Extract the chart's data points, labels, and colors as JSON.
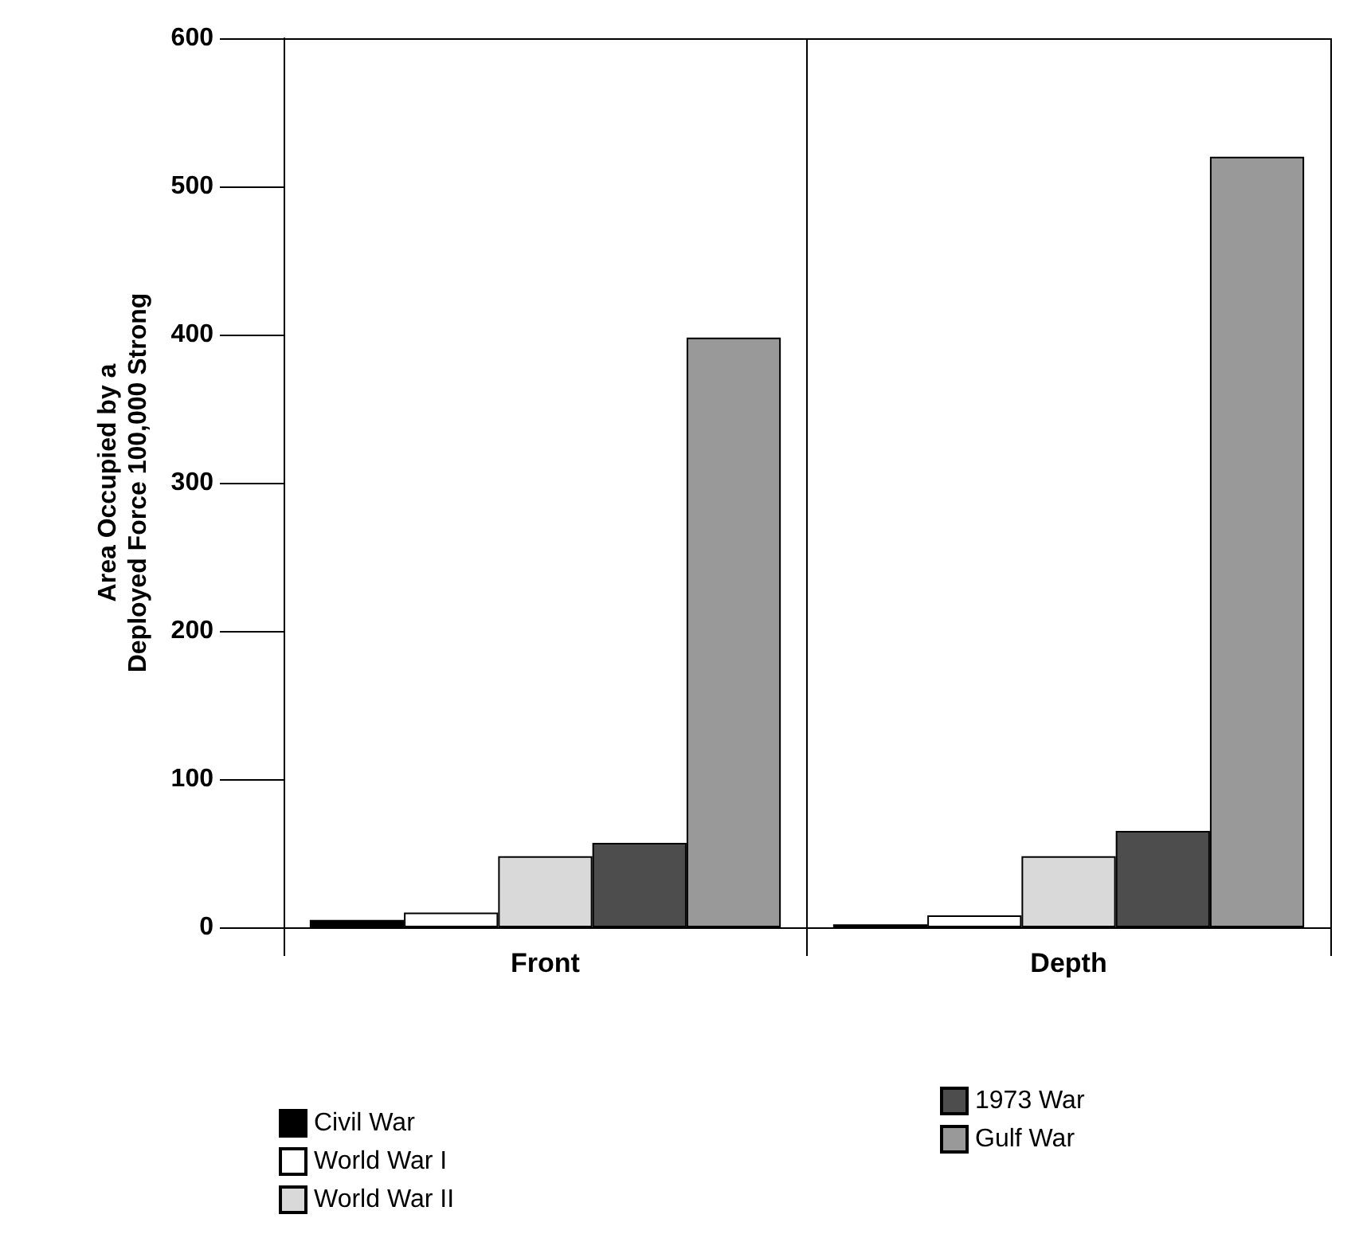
{
  "chart_data": {
    "type": "bar",
    "ylabel": "Area Occupied by a\nDeployed Force 100,000 Strong",
    "categories": [
      "Front",
      "Depth"
    ],
    "series": [
      {
        "name": "Civil War",
        "color": "#000000",
        "values": [
          5,
          2
        ]
      },
      {
        "name": "World War I",
        "color": "#ffffff",
        "values": [
          10,
          8
        ]
      },
      {
        "name": "World War II",
        "color": "#d9d9d9",
        "values": [
          48,
          48
        ]
      },
      {
        "name": "1973 War",
        "color": "#4d4d4d",
        "values": [
          57,
          65
        ]
      },
      {
        "name": "Gulf War",
        "color": "#999999",
        "values": [
          398,
          520
        ]
      }
    ],
    "ylim": [
      0,
      600
    ],
    "yticks": [
      0,
      100,
      200,
      300,
      400,
      500,
      600
    ],
    "grid": false,
    "legend": "bottom"
  }
}
